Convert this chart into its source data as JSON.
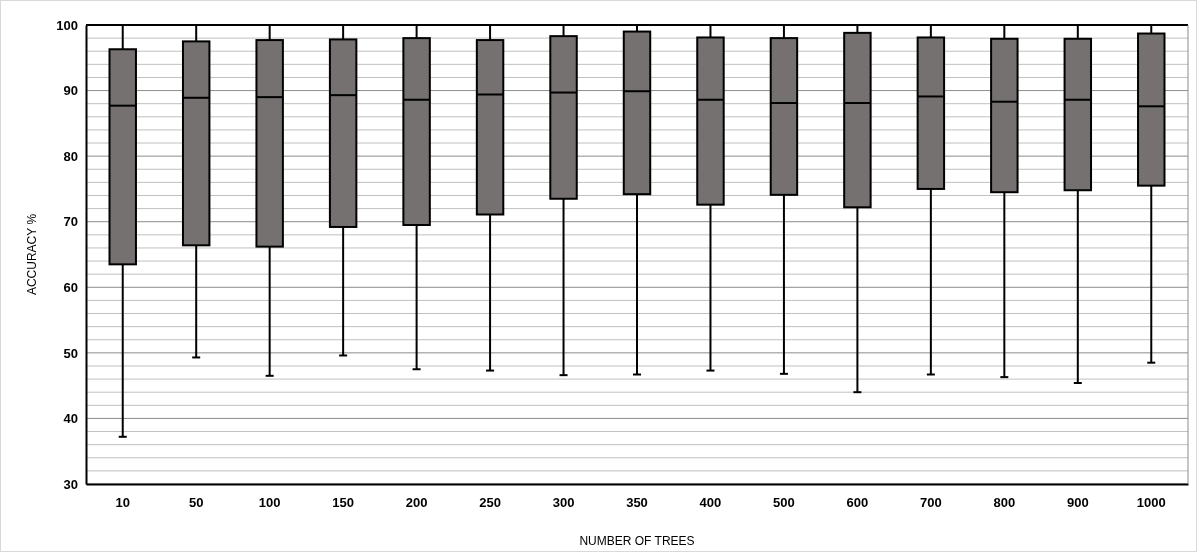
{
  "chart_data": {
    "type": "box",
    "xlabel": "NUMBER OF TREES",
    "ylabel": "ACCURACY %",
    "categories": [
      "10",
      "50",
      "100",
      "150",
      "200",
      "250",
      "300",
      "350",
      "400",
      "500",
      "600",
      "700",
      "800",
      "900",
      "1000"
    ],
    "color": "#767171",
    "boxes": [
      {
        "low": 37.2,
        "q1": 63.5,
        "median": 87.7,
        "q3": 96.3,
        "high": 100
      },
      {
        "low": 49.3,
        "q1": 66.4,
        "median": 88.9,
        "q3": 97.5,
        "high": 100
      },
      {
        "low": 46.5,
        "q1": 66.2,
        "median": 89,
        "q3": 97.7,
        "high": 100
      },
      {
        "low": 49.6,
        "q1": 69.2,
        "median": 89.3,
        "q3": 97.8,
        "high": 100
      },
      {
        "low": 47.5,
        "q1": 69.5,
        "median": 88.6,
        "q3": 98,
        "high": 100
      },
      {
        "low": 47.3,
        "q1": 71.1,
        "median": 89.4,
        "q3": 97.7,
        "high": 100
      },
      {
        "low": 46.6,
        "q1": 73.5,
        "median": 89.7,
        "q3": 98.3,
        "high": 100
      },
      {
        "low": 46.7,
        "q1": 74.2,
        "median": 89.9,
        "q3": 99,
        "high": 100
      },
      {
        "low": 47.3,
        "q1": 72.6,
        "median": 88.6,
        "q3": 98.1,
        "high": 100
      },
      {
        "low": 46.8,
        "q1": 74.1,
        "median": 88.1,
        "q3": 98,
        "high": 100
      },
      {
        "low": 44,
        "q1": 72.2,
        "median": 88.1,
        "q3": 98.8,
        "high": 100
      },
      {
        "low": 46.7,
        "q1": 75,
        "median": 89.1,
        "q3": 98.1,
        "high": 100
      },
      {
        "low": 46.3,
        "q1": 74.5,
        "median": 88.3,
        "q3": 97.9,
        "high": 100
      },
      {
        "low": 45.4,
        "q1": 74.8,
        "median": 88.6,
        "q3": 97.9,
        "high": 100
      },
      {
        "low": 48.5,
        "q1": 75.5,
        "median": 87.6,
        "q3": 98.7,
        "high": 100
      }
    ],
    "ylim": [
      30,
      100
    ],
    "yticks": [
      30,
      {
        "value": 32,
        "label": null
      },
      {
        "value": 34,
        "label": null
      },
      {
        "value": 36,
        "label": null
      },
      {
        "value": 38,
        "label": null
      },
      40,
      {
        "value": 42,
        "label": null
      },
      {
        "value": 44,
        "label": null
      },
      {
        "value": 46,
        "label": null
      },
      {
        "value": 48,
        "label": null
      },
      50,
      {
        "value": 52,
        "label": null
      },
      {
        "value": 54,
        "label": null
      },
      {
        "value": 56,
        "label": null
      },
      {
        "value": 58,
        "label": null
      },
      60,
      {
        "value": 62,
        "label": null
      },
      {
        "value": 64,
        "label": null
      },
      {
        "value": 66,
        "label": null
      },
      {
        "value": 68,
        "label": null
      },
      70,
      {
        "value": 72,
        "label": null
      },
      {
        "value": 74,
        "label": null
      },
      {
        "value": 76,
        "label": null
      },
      {
        "value": 78,
        "label": null
      },
      80,
      {
        "value": 82,
        "label": null
      },
      {
        "value": 84,
        "label": null
      },
      {
        "value": 86,
        "label": null
      },
      {
        "value": 88,
        "label": null
      },
      90,
      {
        "value": 92,
        "label": null
      },
      {
        "value": 94,
        "label": null
      },
      {
        "value": 96,
        "label": null
      },
      {
        "value": 98,
        "label": null
      },
      100
    ],
    "grid": true
  }
}
